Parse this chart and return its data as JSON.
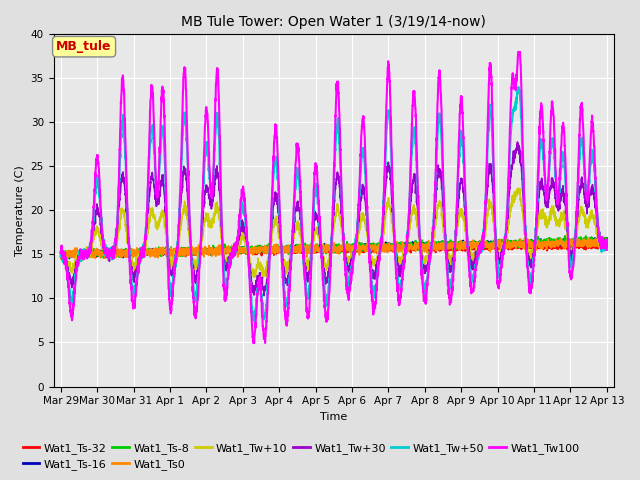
{
  "title": "MB Tule Tower: Open Water 1 (3/19/14-now)",
  "xlabel": "Time",
  "ylabel": "Temperature (C)",
  "ylim": [
    0,
    40
  ],
  "yticks": [
    0,
    5,
    10,
    15,
    20,
    25,
    30,
    35,
    40
  ],
  "xtick_labels": [
    "Mar 29",
    "Mar 30",
    "Mar 31",
    "Apr 1",
    "Apr 2",
    "Apr 3",
    "Apr 4",
    "Apr 5",
    "Apr 6",
    "Apr 7",
    "Apr 8",
    "Apr 9",
    "Apr 10",
    "Apr 11",
    "Apr 12",
    "Apr 13"
  ],
  "legend_label": "MB_tule",
  "series_labels": [
    "Wat1_Ts-32",
    "Wat1_Ts-16",
    "Wat1_Ts-8",
    "Wat1_Ts0",
    "Wat1_Tw+10",
    "Wat1_Tw+30",
    "Wat1_Tw+50",
    "Wat1_Tw100"
  ],
  "series_colors": [
    "#ff0000",
    "#0000bb",
    "#00cc00",
    "#ff8800",
    "#cccc00",
    "#9900cc",
    "#00cccc",
    "#ff00ff"
  ],
  "series_linewidths": [
    1.5,
    1.5,
    1.5,
    1.2,
    1.2,
    1.2,
    1.5,
    1.5
  ],
  "background_color": "#e0e0e0",
  "plot_bg_color": "#e8e8e8",
  "grid_color": "#ffffff",
  "title_fontsize": 10,
  "axis_fontsize": 8,
  "tick_fontsize": 7.5,
  "legend_fontsize": 8
}
